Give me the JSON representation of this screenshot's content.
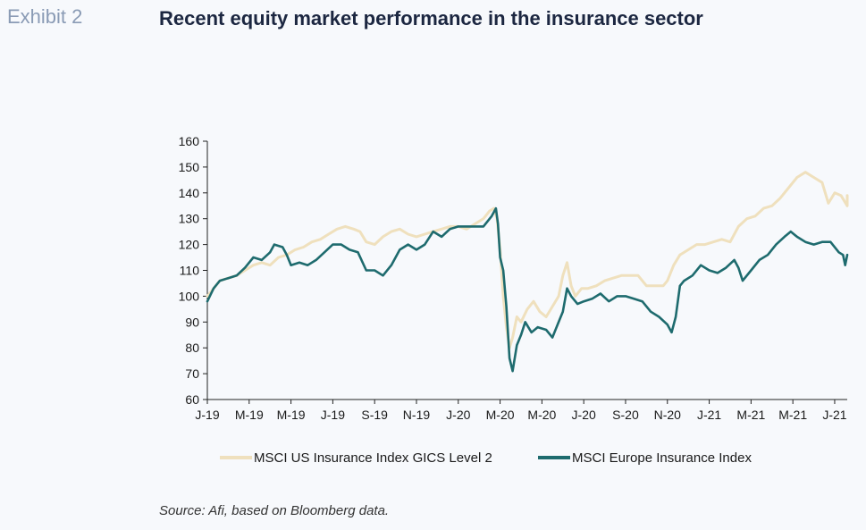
{
  "header": {
    "exhibit": "Exhibit 2",
    "title": "Recent equity market performance in the insurance sector"
  },
  "footer": {
    "source": "Source: Afi, based on Bloomberg data."
  },
  "chart_data": {
    "type": "line",
    "title": "Recent equity market performance in the insurance sector",
    "xlabel": "",
    "ylabel": "",
    "ylim": [
      60,
      160
    ],
    "yticks": [
      60,
      70,
      80,
      90,
      100,
      110,
      120,
      130,
      140,
      150,
      160
    ],
    "xlim": [
      0,
      30.6
    ],
    "xticks": [
      {
        "x": 0,
        "label": "J-19"
      },
      {
        "x": 2,
        "label": "M-19"
      },
      {
        "x": 4,
        "label": "M-19"
      },
      {
        "x": 6,
        "label": "J-19"
      },
      {
        "x": 8,
        "label": "S-19"
      },
      {
        "x": 10,
        "label": "N-19"
      },
      {
        "x": 12,
        "label": "J-20"
      },
      {
        "x": 14,
        "label": "M-20"
      },
      {
        "x": 16,
        "label": "M-20"
      },
      {
        "x": 18,
        "label": "J-20"
      },
      {
        "x": 20,
        "label": "S-20"
      },
      {
        "x": 22,
        "label": "N-20"
      },
      {
        "x": 24,
        "label": "J-21"
      },
      {
        "x": 26,
        "label": "M-21"
      },
      {
        "x": 28,
        "label": "M-21"
      },
      {
        "x": 30,
        "label": "J-21"
      }
    ],
    "grid": false,
    "legend": "bottom",
    "series": [
      {
        "name": "MSCI US Insurance Index GICS Level 2",
        "color": "#efe0bd",
        "points": [
          [
            0,
            100
          ],
          [
            0.3,
            103
          ],
          [
            0.6,
            106
          ],
          [
            1,
            107
          ],
          [
            1.4,
            108
          ],
          [
            1.8,
            110
          ],
          [
            2.2,
            112
          ],
          [
            2.6,
            113
          ],
          [
            3,
            112
          ],
          [
            3.4,
            115
          ],
          [
            3.8,
            116
          ],
          [
            4.2,
            118
          ],
          [
            4.6,
            119
          ],
          [
            5,
            121
          ],
          [
            5.4,
            122
          ],
          [
            5.8,
            124
          ],
          [
            6.2,
            126
          ],
          [
            6.6,
            127
          ],
          [
            7,
            126
          ],
          [
            7.3,
            125
          ],
          [
            7.6,
            121
          ],
          [
            8,
            120
          ],
          [
            8.4,
            123
          ],
          [
            8.8,
            125
          ],
          [
            9.2,
            126
          ],
          [
            9.6,
            124
          ],
          [
            10,
            123
          ],
          [
            10.4,
            124
          ],
          [
            10.8,
            125
          ],
          [
            11.2,
            126
          ],
          [
            11.6,
            127
          ],
          [
            12,
            127
          ],
          [
            12.4,
            126
          ],
          [
            12.8,
            128
          ],
          [
            13.2,
            130
          ],
          [
            13.5,
            133
          ],
          [
            13.7,
            134
          ],
          [
            13.85,
            130
          ],
          [
            14,
            118
          ],
          [
            14.15,
            100
          ],
          [
            14.3,
            88
          ],
          [
            14.45,
            80
          ],
          [
            14.6,
            84
          ],
          [
            14.8,
            92
          ],
          [
            15,
            90
          ],
          [
            15.3,
            95
          ],
          [
            15.6,
            98
          ],
          [
            15.9,
            94
          ],
          [
            16.2,
            92
          ],
          [
            16.5,
            96
          ],
          [
            16.8,
            100
          ],
          [
            17,
            108
          ],
          [
            17.2,
            113
          ],
          [
            17.4,
            104
          ],
          [
            17.6,
            100
          ],
          [
            17.9,
            103
          ],
          [
            18.2,
            103
          ],
          [
            18.6,
            104
          ],
          [
            19,
            106
          ],
          [
            19.4,
            107
          ],
          [
            19.8,
            108
          ],
          [
            20.2,
            108
          ],
          [
            20.6,
            108
          ],
          [
            21,
            104
          ],
          [
            21.4,
            104
          ],
          [
            21.8,
            104
          ],
          [
            22,
            106
          ],
          [
            22.3,
            112
          ],
          [
            22.6,
            116
          ],
          [
            23,
            118
          ],
          [
            23.4,
            120
          ],
          [
            23.8,
            120
          ],
          [
            24.2,
            121
          ],
          [
            24.6,
            122
          ],
          [
            25,
            121
          ],
          [
            25.4,
            127
          ],
          [
            25.8,
            130
          ],
          [
            26.2,
            131
          ],
          [
            26.6,
            134
          ],
          [
            27,
            135
          ],
          [
            27.4,
            138
          ],
          [
            27.8,
            142
          ],
          [
            28.2,
            146
          ],
          [
            28.6,
            148
          ],
          [
            29,
            146
          ],
          [
            29.4,
            144
          ],
          [
            29.7,
            136
          ],
          [
            30,
            140
          ],
          [
            30.3,
            139
          ],
          [
            30.6,
            135
          ],
          [
            30.6,
            139
          ]
        ]
      },
      {
        "name": "MSCI Europe Insurance Index",
        "color": "#1e6b6e",
        "points": [
          [
            0,
            98
          ],
          [
            0.3,
            103
          ],
          [
            0.6,
            106
          ],
          [
            1,
            107
          ],
          [
            1.4,
            108
          ],
          [
            1.8,
            111
          ],
          [
            2.2,
            115
          ],
          [
            2.6,
            114
          ],
          [
            3,
            117
          ],
          [
            3.2,
            120
          ],
          [
            3.6,
            119
          ],
          [
            3.8,
            116
          ],
          [
            4,
            112
          ],
          [
            4.4,
            113
          ],
          [
            4.8,
            112
          ],
          [
            5.2,
            114
          ],
          [
            5.6,
            117
          ],
          [
            6,
            120
          ],
          [
            6.4,
            120
          ],
          [
            6.8,
            118
          ],
          [
            7.2,
            117
          ],
          [
            7.6,
            110
          ],
          [
            8,
            110
          ],
          [
            8.4,
            108
          ],
          [
            8.8,
            112
          ],
          [
            9.2,
            118
          ],
          [
            9.6,
            120
          ],
          [
            10,
            118
          ],
          [
            10.4,
            120
          ],
          [
            10.8,
            125
          ],
          [
            11.2,
            123
          ],
          [
            11.6,
            126
          ],
          [
            12,
            127
          ],
          [
            12.4,
            127
          ],
          [
            12.8,
            127
          ],
          [
            13.2,
            127
          ],
          [
            13.6,
            131
          ],
          [
            13.8,
            134
          ],
          [
            13.9,
            128
          ],
          [
            14,
            115
          ],
          [
            14.15,
            110
          ],
          [
            14.3,
            96
          ],
          [
            14.45,
            76
          ],
          [
            14.6,
            71
          ],
          [
            14.8,
            81
          ],
          [
            15,
            85
          ],
          [
            15.2,
            90
          ],
          [
            15.5,
            86
          ],
          [
            15.8,
            88
          ],
          [
            16.2,
            87
          ],
          [
            16.5,
            84
          ],
          [
            16.8,
            90
          ],
          [
            17,
            94
          ],
          [
            17.2,
            103
          ],
          [
            17.4,
            100
          ],
          [
            17.7,
            97
          ],
          [
            18,
            98
          ],
          [
            18.4,
            99
          ],
          [
            18.8,
            101
          ],
          [
            19.2,
            98
          ],
          [
            19.6,
            100
          ],
          [
            20,
            100
          ],
          [
            20.4,
            99
          ],
          [
            20.8,
            98
          ],
          [
            21.2,
            94
          ],
          [
            21.6,
            92
          ],
          [
            22,
            89
          ],
          [
            22.2,
            86
          ],
          [
            22.4,
            92
          ],
          [
            22.6,
            104
          ],
          [
            22.8,
            106
          ],
          [
            23.2,
            108
          ],
          [
            23.6,
            112
          ],
          [
            24,
            110
          ],
          [
            24.4,
            109
          ],
          [
            24.8,
            111
          ],
          [
            25.2,
            114
          ],
          [
            25.4,
            111
          ],
          [
            25.6,
            106
          ],
          [
            26,
            110
          ],
          [
            26.4,
            114
          ],
          [
            26.8,
            116
          ],
          [
            27.2,
            120
          ],
          [
            27.6,
            123
          ],
          [
            27.9,
            125
          ],
          [
            28.2,
            123
          ],
          [
            28.6,
            121
          ],
          [
            29,
            120
          ],
          [
            29.4,
            121
          ],
          [
            29.8,
            121
          ],
          [
            30.2,
            117
          ],
          [
            30.4,
            116
          ],
          [
            30.5,
            112
          ],
          [
            30.6,
            116
          ]
        ]
      }
    ]
  }
}
